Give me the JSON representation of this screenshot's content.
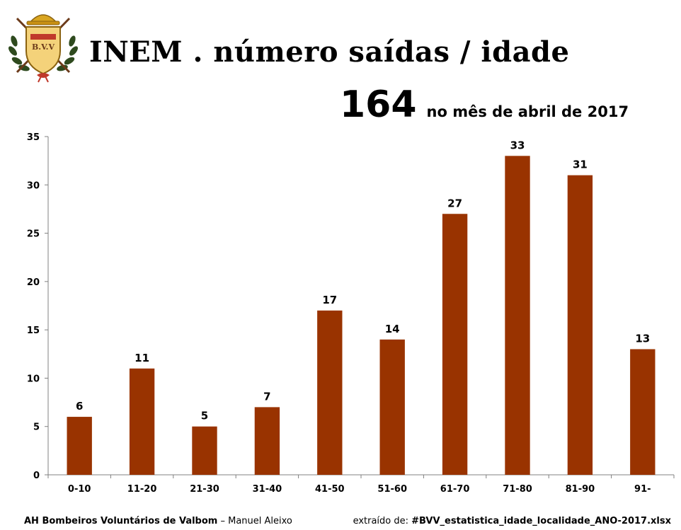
{
  "header": {
    "title": "INEM . número saídas / idade",
    "logo_text": "B.V.V",
    "total_value": "164",
    "total_label": "no mês de abril de 2017"
  },
  "chart_data": {
    "type": "bar",
    "categories": [
      "0-10",
      "11-20",
      "21-30",
      "31-40",
      "41-50",
      "51-60",
      "61-70",
      "71-80",
      "81-90",
      "91-"
    ],
    "values": [
      6,
      11,
      5,
      7,
      17,
      14,
      27,
      33,
      31,
      13
    ],
    "title": "",
    "xlabel": "",
    "ylabel": "",
    "ylim": [
      0,
      35
    ],
    "yticks": [
      0,
      5,
      10,
      15,
      20,
      25,
      30,
      35
    ],
    "grid": false,
    "data_labels": true,
    "colors": {
      "bar": "#993300",
      "axis": "#808080"
    }
  },
  "footer": {
    "org": "AH Bombeiros Voluntários de Valbom",
    "separator": " – ",
    "author": "Manuel Aleixo",
    "source_prefix": "extraído de: ",
    "source_file": "#BVV_estatistica_idade_localidade_ANO-2017.xlsx"
  }
}
